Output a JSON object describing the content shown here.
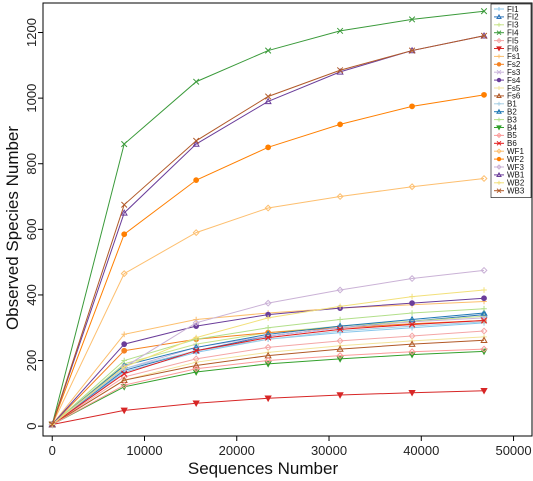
{
  "chart_data": {
    "type": "line",
    "title": "",
    "xlabel": "Sequences Number",
    "ylabel": "Observed Species Number",
    "xlim": [
      -1000,
      52000
    ],
    "ylim": [
      -30,
      1290
    ],
    "x_ticks": [
      0,
      10000,
      20000,
      30000,
      40000,
      50000
    ],
    "x_tick_labels": [
      "0",
      "10000",
      "20000",
      "30000",
      "40000",
      "50000"
    ],
    "y_ticks": [
      0,
      200,
      400,
      600,
      800,
      1000,
      1200
    ],
    "y_tick_labels": [
      "0",
      "200",
      "400",
      "600",
      "800",
      "1000",
      "1200"
    ],
    "x": [
      0,
      7800,
      15600,
      23400,
      31200,
      39000,
      46800
    ],
    "legend_position": "top-right",
    "grid": false,
    "series": [
      {
        "name": "FI1",
        "color": "#88c7ec",
        "marker": "plus",
        "values": [
          5,
          165,
          225,
          265,
          285,
          300,
          315
        ]
      },
      {
        "name": "FI2",
        "color": "#2d73b8",
        "marker": "triangle",
        "values": [
          5,
          170,
          230,
          275,
          300,
          320,
          340
        ]
      },
      {
        "name": "FI3",
        "color": "#c7e38a",
        "marker": "plus",
        "values": [
          5,
          190,
          250,
          285,
          305,
          320,
          335
        ]
      },
      {
        "name": "FI4",
        "color": "#3a9a3a",
        "marker": "x",
        "values": [
          5,
          860,
          1050,
          1145,
          1205,
          1240,
          1265
        ]
      },
      {
        "name": "FI5",
        "color": "#f4a6a6",
        "marker": "diamond",
        "values": [
          5,
          150,
          205,
          240,
          260,
          275,
          290
        ]
      },
      {
        "name": "FI6",
        "color": "#d72626",
        "marker": "triangle-down",
        "values": [
          5,
          48,
          70,
          85,
          95,
          102,
          108
        ]
      },
      {
        "name": "Fs1",
        "color": "#fcbf6e",
        "marker": "plus",
        "values": [
          5,
          280,
          325,
          345,
          360,
          370,
          380
        ]
      },
      {
        "name": "Fs2",
        "color": "#f58220",
        "marker": "circle",
        "values": [
          5,
          230,
          265,
          285,
          300,
          312,
          322
        ]
      },
      {
        "name": "Fs3",
        "color": "#c9b4dc",
        "marker": "x",
        "values": [
          5,
          175,
          240,
          275,
          300,
          318,
          330
        ]
      },
      {
        "name": "Fs4",
        "color": "#6a3d9a",
        "marker": "circle",
        "values": [
          5,
          250,
          305,
          340,
          360,
          375,
          390
        ]
      },
      {
        "name": "Fs5",
        "color": "#f3e49a",
        "marker": "plus",
        "values": [
          5,
          140,
          195,
          225,
          245,
          260,
          272
        ]
      },
      {
        "name": "Fs6",
        "color": "#b15928",
        "marker": "triangle",
        "values": [
          5,
          140,
          185,
          215,
          235,
          250,
          262
        ]
      },
      {
        "name": "B1",
        "color": "#a6cee3",
        "marker": "plus",
        "values": [
          5,
          175,
          230,
          265,
          290,
          305,
          318
        ]
      },
      {
        "name": "B2",
        "color": "#1f78b4",
        "marker": "triangle",
        "values": [
          5,
          185,
          240,
          280,
          305,
          325,
          345
        ]
      },
      {
        "name": "B3",
        "color": "#b2df8a",
        "marker": "plus",
        "values": [
          5,
          200,
          265,
          300,
          325,
          345,
          358
        ]
      },
      {
        "name": "B4",
        "color": "#33a02c",
        "marker": "triangle-down",
        "values": [
          5,
          120,
          165,
          190,
          205,
          218,
          228
        ]
      },
      {
        "name": "B5",
        "color": "#fb9a99",
        "marker": "diamond",
        "values": [
          5,
          125,
          175,
          200,
          215,
          227,
          235
        ]
      },
      {
        "name": "B6",
        "color": "#e31a1c",
        "marker": "x",
        "values": [
          5,
          160,
          230,
          270,
          295,
          310,
          322
        ]
      },
      {
        "name": "WF1",
        "color": "#fdbf6f",
        "marker": "diamond",
        "values": [
          5,
          465,
          590,
          665,
          700,
          730,
          755
        ]
      },
      {
        "name": "WF2",
        "color": "#ff7f00",
        "marker": "circle",
        "values": [
          5,
          585,
          750,
          850,
          920,
          975,
          1010
        ]
      },
      {
        "name": "WF3",
        "color": "#cab2d6",
        "marker": "diamond",
        "values": [
          5,
          180,
          315,
          375,
          415,
          450,
          475
        ]
      },
      {
        "name": "WB1",
        "color": "#6a3d9a",
        "marker": "triangle",
        "values": [
          5,
          650,
          860,
          990,
          1080,
          1145,
          1190
        ]
      },
      {
        "name": "WB2",
        "color": "#f2e07a",
        "marker": "plus",
        "values": [
          5,
          180,
          270,
          330,
          365,
          395,
          415
        ]
      },
      {
        "name": "WB3",
        "color": "#b15928",
        "marker": "x",
        "values": [
          5,
          675,
          870,
          1005,
          1085,
          1145,
          1190
        ]
      }
    ]
  }
}
